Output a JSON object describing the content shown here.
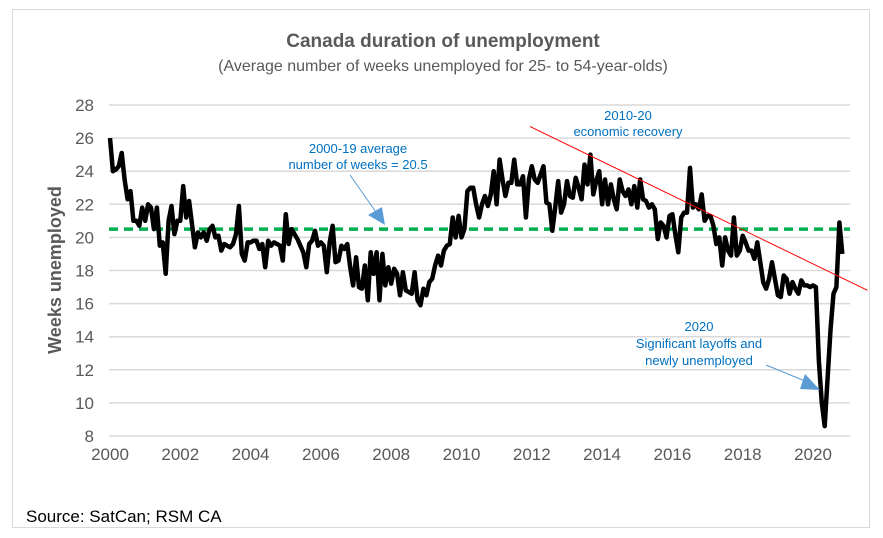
{
  "chart_data": {
    "type": "line",
    "title": "Canada duration of unemployment",
    "subtitle": "(Average number of weeks unemployed for 25- to 54-year-olds)",
    "xlabel": "",
    "ylabel": "Weeks unemployed",
    "xlim": [
      2000,
      2021
    ],
    "ylim": [
      8,
      28
    ],
    "x_ticks": [
      "2000",
      "2002",
      "2004",
      "2006",
      "2008",
      "2010",
      "2012",
      "2014",
      "2016",
      "2018",
      "2020"
    ],
    "y_ticks": [
      "8",
      "10",
      "12",
      "14",
      "16",
      "18",
      "20",
      "22",
      "24",
      "26",
      "28"
    ],
    "grid": "horizontal",
    "frequency": "monthly",
    "series": [
      {
        "color": "#000000",
        "data": [
          {
            "year": 2000,
            "values": [
              26,
              24,
              24.1,
              24.3,
              25.1,
              23.5,
              22.3,
              22.8,
              21,
              21,
              20.7,
              21.8
            ]
          },
          {
            "year": 2001,
            "values": [
              21,
              22,
              21.8,
              20.5,
              21.8,
              19.5,
              19.7,
              17.8,
              21,
              21.9,
              20.2,
              21
            ]
          },
          {
            "year": 2002,
            "values": [
              21,
              23.1,
              21.2,
              22.2,
              20.8,
              19.4,
              20.3,
              20,
              20.3,
              19.8,
              20.5,
              20.7
            ]
          },
          {
            "year": 2003,
            "values": [
              20,
              20.1,
              19.2,
              19.6,
              19.5,
              19.4,
              19.6,
              20.2,
              21.9,
              19,
              18.6,
              19.7
            ]
          },
          {
            "year": 2004,
            "values": [
              19.7,
              19.8,
              19.8,
              19.3,
              19.6,
              18.2,
              19.8,
              19.5,
              19.7,
              19.6,
              19.5,
              18.6
            ]
          },
          {
            "year": 2005,
            "values": [
              21.4,
              19.6,
              20.5,
              20.2,
              19.9,
              19.5,
              19.1,
              18.2,
              19.6,
              19.8,
              20.4,
              19.5
            ]
          },
          {
            "year": 2006,
            "values": [
              19.7,
              19.5,
              17.9,
              19.7,
              20.7,
              18.5,
              18.6,
              19.5,
              19.3,
              19.6,
              18.2,
              17.1
            ]
          },
          {
            "year": 2007,
            "values": [
              18.8,
              17,
              16.9,
              18.3,
              16.2,
              19.1,
              17.8,
              19.1,
              16.2,
              19,
              17.1,
              18.2
            ]
          },
          {
            "year": 2008,
            "values": [
              17.2,
              18.1,
              17.8,
              16.5,
              17.9,
              16.8,
              16.7,
              16.6,
              17.9,
              16.2,
              15.9,
              16.9
            ]
          },
          {
            "year": 2009,
            "values": [
              16.5,
              17.3,
              17.5,
              18.3,
              18.9,
              18.3,
              19.2,
              19.5,
              19.6,
              21.2,
              20,
              21.3
            ]
          },
          {
            "year": 2010,
            "values": [
              20,
              20.5,
              22.8,
              23,
              23,
              22,
              21.2,
              22,
              22.5,
              21.9,
              22.6,
              24
            ]
          },
          {
            "year": 2011,
            "values": [
              22,
              24.7,
              23.5,
              22.5,
              23.3,
              23.3,
              24.7,
              23.2,
              23.2,
              23.7,
              21.2,
              23.5
            ]
          },
          {
            "year": 2012,
            "values": [
              24.3,
              23.5,
              23.3,
              23.8,
              24.3,
              22.1,
              22,
              20.4,
              21.8,
              23.4,
              21.5,
              22
            ]
          },
          {
            "year": 2013,
            "values": [
              23.4,
              22.5,
              22.4,
              23.6,
              23,
              22.3,
              24.4,
              23.2,
              25,
              22.6,
              23.4,
              24
            ]
          },
          {
            "year": 2014,
            "values": [
              22,
              23.5,
              22,
              23.2,
              22.3,
              21.7,
              23.5,
              22.8,
              22.5,
              22.9,
              22,
              23.1
            ]
          },
          {
            "year": 2015,
            "values": [
              21.8,
              23.5,
              22.3,
              22.2,
              21.8,
              22,
              21.7,
              19.9,
              20.9,
              20.7,
              20,
              21.3
            ]
          },
          {
            "year": 2016,
            "values": [
              21.4,
              20.2,
              19.1,
              21.2,
              21.5,
              21.5,
              24.2,
              21.8,
              22,
              21.7,
              22.6,
              21
            ]
          },
          {
            "year": 2017,
            "values": [
              21.3,
              21.3,
              20.7,
              19.6,
              20,
              18.3,
              20,
              19.2,
              18.9,
              21.2,
              18.9,
              19.2
            ]
          },
          {
            "year": 2018,
            "values": [
              20.1,
              19.7,
              19.2,
              19.2,
              18.7,
              19.7,
              18.5,
              17.3,
              16.9,
              17.5,
              18.5,
              17.5
            ]
          },
          {
            "year": 2019,
            "values": [
              16.5,
              16.4,
              17.7,
              17.5,
              16.6,
              17.3,
              16.9,
              16.6,
              17.4,
              17.1,
              17.1,
              17
            ]
          },
          {
            "year": 2020,
            "values": [
              17.1,
              17,
              12.5,
              10,
              8.6,
              11.5,
              14.5,
              16.6,
              17,
              20.9,
              19
            ]
          }
        ]
      }
    ],
    "reference_lines": [
      {
        "type": "horizontal",
        "value": 20.5,
        "style": "dashed",
        "color": "#00b050"
      },
      {
        "type": "trend",
        "from": [
          2011.95,
          26.7
        ],
        "to": [
          2021.55,
          16.8
        ],
        "color": "#ff0000"
      }
    ],
    "annotations": [
      {
        "lines": [
          "2000-19 average",
          "number of weeks = 20.5"
        ],
        "color": "#0070c0"
      },
      {
        "lines": [
          "2010-20",
          "economic recovery"
        ],
        "color": "#0070c0"
      },
      {
        "lines": [
          "2020",
          "Significant layoffs and",
          "newly unemployed"
        ],
        "color": "#0070c0"
      }
    ],
    "source": "Source: SatCan; RSM CA"
  }
}
